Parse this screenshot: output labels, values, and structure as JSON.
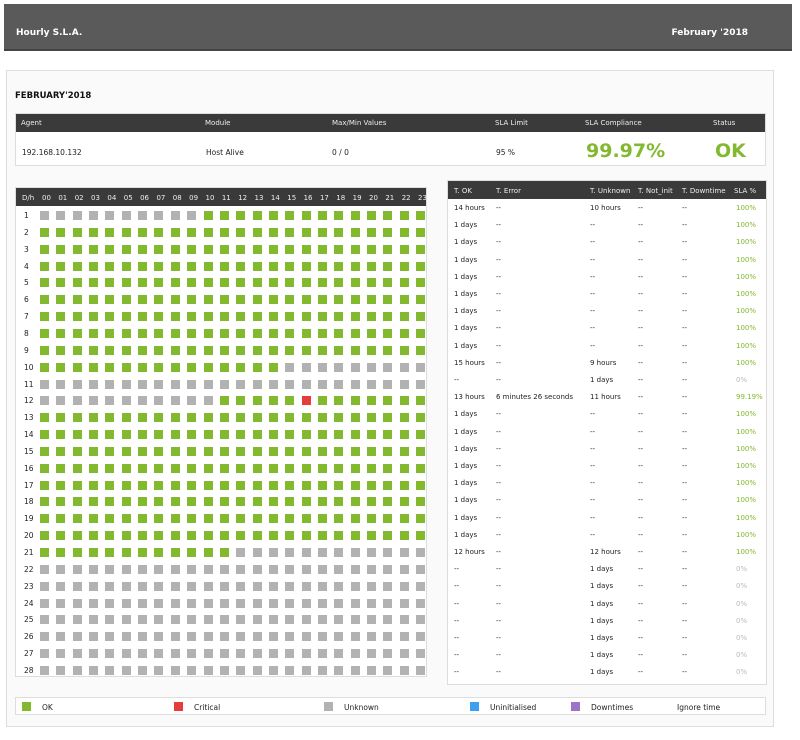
{
  "header": {
    "title": "Hourly S.L.A.",
    "period": "February '2018"
  },
  "page_title": "FEBRUARY'2018",
  "agent_table": {
    "headers": [
      "Agent",
      "Module",
      "Max/Min Values",
      "SLA Limit",
      "SLA Compliance",
      "Status"
    ],
    "row": {
      "agent": "192.168.10.132",
      "module": "Host Alive",
      "maxmin": "0 / 0",
      "limit": "95 %",
      "compliance": "99.97%",
      "status": "OK"
    }
  },
  "colors": {
    "ok": "#82b92e",
    "critical": "#e63c3c",
    "unknown": "#b2b2b2",
    "uninit": "#3ba0f2",
    "downtime": "#9c73c7"
  },
  "grid": {
    "corner": "D/h",
    "hours": [
      "00",
      "01",
      "02",
      "03",
      "04",
      "05",
      "06",
      "07",
      "08",
      "09",
      "10",
      "11",
      "12",
      "13",
      "14",
      "15",
      "16",
      "17",
      "18",
      "19",
      "20",
      "21",
      "22",
      "23"
    ],
    "rows": [
      {
        "day": "1",
        "cells": "UUUUUUUUUUOOOOOOOOOOOOOO"
      },
      {
        "day": "2",
        "cells": "OOOOOOOOOOOOOOOOOOOOOOOO"
      },
      {
        "day": "3",
        "cells": "OOOOOOOOOOOOOOOOOOOOOOOO"
      },
      {
        "day": "4",
        "cells": "OOOOOOOOOOOOOOOOOOOOOOOO"
      },
      {
        "day": "5",
        "cells": "OOOOOOOOOOOOOOOOOOOOOOOO"
      },
      {
        "day": "6",
        "cells": "OOOOOOOOOOOOOOOOOOOOOOOO"
      },
      {
        "day": "7",
        "cells": "OOOOOOOOOOOOOOOOOOOOOOOO"
      },
      {
        "day": "8",
        "cells": "OOOOOOOOOOOOOOOOOOOOOOOO"
      },
      {
        "day": "9",
        "cells": "OOOOOOOOOOOOOOOOOOOOOOOO"
      },
      {
        "day": "10",
        "cells": "OOOOOOOOOOOOOOOUUUUUUUUU"
      },
      {
        "day": "11",
        "cells": "UUUUUUUUUUUUUUUUUUUUUUUU"
      },
      {
        "day": "12",
        "cells": "UUUUUUUUUUUOOOOOCOOOOOOO"
      },
      {
        "day": "13",
        "cells": "OOOOOOOOOOOOOOOOOOOOOOOO"
      },
      {
        "day": "14",
        "cells": "OOOOOOOOOOOOOOOOOOOOOOOO"
      },
      {
        "day": "15",
        "cells": "OOOOOOOOOOOOOOOOOOOOOOOO"
      },
      {
        "day": "16",
        "cells": "OOOOOOOOOOOOOOOOOOOOOOOO"
      },
      {
        "day": "17",
        "cells": "OOOOOOOOOOOOOOOOOOOOOOOO"
      },
      {
        "day": "18",
        "cells": "OOOOOOOOOOOOOOOOOOOOOOOO"
      },
      {
        "day": "19",
        "cells": "OOOOOOOOOOOOOOOOOOOOOOOO"
      },
      {
        "day": "20",
        "cells": "OOOOOOOOOOOOOOOOOOOOOOOO"
      },
      {
        "day": "21",
        "cells": "OOOOOOOOOOOOUUUUUUUUUUUU"
      },
      {
        "day": "22",
        "cells": "UUUUUUUUUUUUUUUUUUUUUUUU"
      },
      {
        "day": "23",
        "cells": "UUUUUUUUUUUUUUUUUUUUUUUU"
      },
      {
        "day": "24",
        "cells": "UUUUUUUUUUUUUUUUUUUUUUUU"
      },
      {
        "day": "25",
        "cells": "UUUUUUUUUUUUUUUUUUUUUUUU"
      },
      {
        "day": "26",
        "cells": "UUUUUUUUUUUUUUUUUUUUUUUU"
      },
      {
        "day": "27",
        "cells": "UUUUUUUUUUUUUUUUUUUUUUUU"
      },
      {
        "day": "28",
        "cells": "UUUUUUUUUUUUUUUUUUUUUUUU"
      }
    ]
  },
  "summary": {
    "headers": [
      "T. OK",
      "T. Error",
      "T. Unknown",
      "T. Not_init",
      "T. Downtime",
      "SLA %"
    ],
    "rows": [
      [
        "14 hours",
        "--",
        "10 hours",
        "--",
        "--",
        "100%"
      ],
      [
        "1 days",
        "--",
        "--",
        "--",
        "--",
        "100%"
      ],
      [
        "1 days",
        "--",
        "--",
        "--",
        "--",
        "100%"
      ],
      [
        "1 days",
        "--",
        "--",
        "--",
        "--",
        "100%"
      ],
      [
        "1 days",
        "--",
        "--",
        "--",
        "--",
        "100%"
      ],
      [
        "1 days",
        "--",
        "--",
        "--",
        "--",
        "100%"
      ],
      [
        "1 days",
        "--",
        "--",
        "--",
        "--",
        "100%"
      ],
      [
        "1 days",
        "--",
        "--",
        "--",
        "--",
        "100%"
      ],
      [
        "1 days",
        "--",
        "--",
        "--",
        "--",
        "100%"
      ],
      [
        "15 hours",
        "--",
        "9 hours",
        "--",
        "--",
        "100%"
      ],
      [
        "--",
        "--",
        "1 days",
        "--",
        "--",
        "0%"
      ],
      [
        "13 hours",
        "6 minutes 26 seconds",
        "11 hours",
        "--",
        "--",
        "99.19%"
      ],
      [
        "1 days",
        "--",
        "--",
        "--",
        "--",
        "100%"
      ],
      [
        "1 days",
        "--",
        "--",
        "--",
        "--",
        "100%"
      ],
      [
        "1 days",
        "--",
        "--",
        "--",
        "--",
        "100%"
      ],
      [
        "1 days",
        "--",
        "--",
        "--",
        "--",
        "100%"
      ],
      [
        "1 days",
        "--",
        "--",
        "--",
        "--",
        "100%"
      ],
      [
        "1 days",
        "--",
        "--",
        "--",
        "--",
        "100%"
      ],
      [
        "1 days",
        "--",
        "--",
        "--",
        "--",
        "100%"
      ],
      [
        "1 days",
        "--",
        "--",
        "--",
        "--",
        "100%"
      ],
      [
        "12 hours",
        "--",
        "12 hours",
        "--",
        "--",
        "100%"
      ],
      [
        "--",
        "--",
        "1 days",
        "--",
        "--",
        "0%"
      ],
      [
        "--",
        "--",
        "1 days",
        "--",
        "--",
        "0%"
      ],
      [
        "--",
        "--",
        "1 days",
        "--",
        "--",
        "0%"
      ],
      [
        "--",
        "--",
        "1 days",
        "--",
        "--",
        "0%"
      ],
      [
        "--",
        "--",
        "1 days",
        "--",
        "--",
        "0%"
      ],
      [
        "--",
        "--",
        "1 days",
        "--",
        "--",
        "0%"
      ],
      [
        "--",
        "--",
        "1 days",
        "--",
        "--",
        "0%"
      ]
    ]
  },
  "legend": {
    "ok": "OK",
    "critical": "Critical",
    "unknown": "Unknown",
    "uninit": "Uninitialised",
    "downtimes": "Downtimes",
    "ignore": "Ignore time"
  }
}
